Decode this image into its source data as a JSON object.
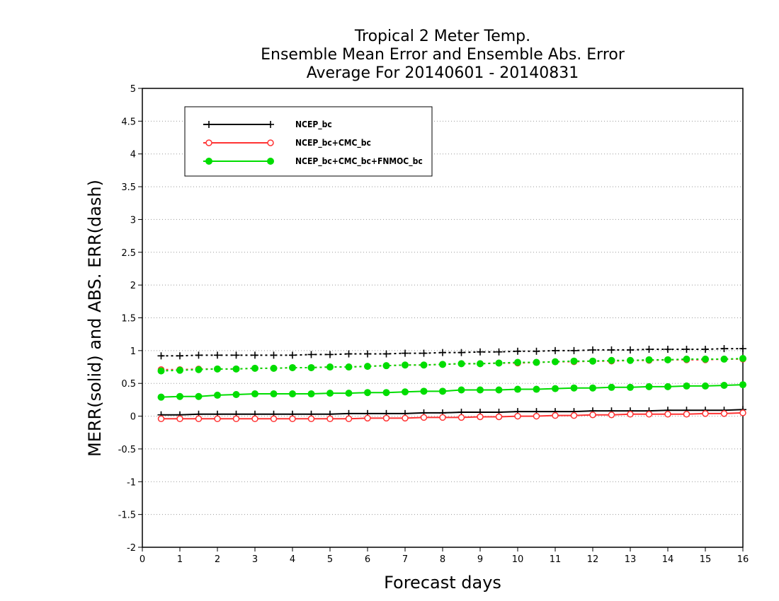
{
  "chart_data": {
    "type": "line",
    "title_lines": [
      "Tropical 2 Meter Temp.",
      "Ensemble Mean Error and Ensemble Abs. Error",
      "Average For 20140601 - 20140831"
    ],
    "xlabel": "Forecast days",
    "ylabel": "MERR(solid) and ABS. ERR(dash)",
    "xlim": [
      0,
      16
    ],
    "ylim": [
      -2,
      5
    ],
    "xticks": [
      0,
      1,
      2,
      3,
      4,
      5,
      6,
      7,
      8,
      9,
      10,
      11,
      12,
      13,
      14,
      15,
      16
    ],
    "yticks": [
      -2,
      -1.5,
      -1,
      -0.5,
      0,
      0.5,
      1,
      1.5,
      2,
      2.5,
      3,
      3.5,
      4,
      4.5,
      5
    ],
    "ytick_labels": [
      "-2",
      "-1.5",
      "-1",
      "-0.5",
      "0",
      "0.5",
      "1",
      "1.5",
      "2",
      "2.5",
      "3",
      "3.5",
      "4",
      "4.5",
      "5"
    ],
    "grid": "horizontal dotted",
    "legend_position": "top-left",
    "x": [
      0.5,
      1,
      1.5,
      2,
      2.5,
      3,
      3.5,
      4,
      4.5,
      5,
      5.5,
      6,
      6.5,
      7,
      7.5,
      8,
      8.5,
      9,
      9.5,
      10,
      10.5,
      11,
      11.5,
      12,
      12.5,
      13,
      13.5,
      14,
      14.5,
      15,
      15.5,
      16
    ],
    "series": [
      {
        "name": "NCEP_bc",
        "color": "#000000",
        "marker": "plus",
        "merr": [
          0.02,
          0.02,
          0.03,
          0.03,
          0.03,
          0.03,
          0.03,
          0.03,
          0.03,
          0.03,
          0.04,
          0.04,
          0.04,
          0.04,
          0.05,
          0.05,
          0.06,
          0.06,
          0.06,
          0.07,
          0.07,
          0.07,
          0.07,
          0.08,
          0.08,
          0.08,
          0.08,
          0.09,
          0.09,
          0.09,
          0.09,
          0.1
        ],
        "abs_err": [
          0.92,
          0.92,
          0.93,
          0.93,
          0.93,
          0.93,
          0.93,
          0.93,
          0.94,
          0.94,
          0.95,
          0.95,
          0.95,
          0.96,
          0.96,
          0.97,
          0.97,
          0.98,
          0.98,
          0.99,
          0.99,
          1.0,
          1.0,
          1.01,
          1.01,
          1.01,
          1.02,
          1.02,
          1.02,
          1.02,
          1.03,
          1.03
        ]
      },
      {
        "name": "NCEP_bc+CMC_bc",
        "color": "#ff3333",
        "marker": "open-circle",
        "merr": [
          -0.04,
          -0.04,
          -0.04,
          -0.04,
          -0.04,
          -0.04,
          -0.04,
          -0.04,
          -0.04,
          -0.04,
          -0.04,
          -0.03,
          -0.03,
          -0.03,
          -0.02,
          -0.02,
          -0.02,
          -0.01,
          -0.01,
          0.0,
          0.0,
          0.01,
          0.01,
          0.02,
          0.02,
          0.03,
          0.03,
          0.03,
          0.03,
          0.04,
          0.04,
          0.05
        ],
        "abs_err": [
          0.71,
          0.71,
          0.72,
          0.72,
          0.72,
          0.73,
          0.73,
          0.74,
          0.74,
          0.75,
          0.75,
          0.76,
          0.77,
          0.78,
          0.78,
          0.79,
          0.8,
          0.8,
          0.81,
          0.81,
          0.82,
          0.83,
          0.83,
          0.84,
          0.84,
          0.85,
          0.85,
          0.86,
          0.86,
          0.86,
          0.87,
          0.87
        ]
      },
      {
        "name": "NCEP_bc+CMC_bc+FNMOC_bc",
        "color": "#00dd00",
        "marker": "filled-circle",
        "merr": [
          0.29,
          0.3,
          0.3,
          0.32,
          0.33,
          0.34,
          0.34,
          0.34,
          0.34,
          0.35,
          0.35,
          0.36,
          0.36,
          0.37,
          0.38,
          0.38,
          0.4,
          0.4,
          0.4,
          0.41,
          0.41,
          0.42,
          0.43,
          0.43,
          0.44,
          0.44,
          0.45,
          0.45,
          0.46,
          0.46,
          0.47,
          0.48
        ],
        "abs_err": [
          0.69,
          0.7,
          0.71,
          0.72,
          0.72,
          0.73,
          0.73,
          0.74,
          0.74,
          0.75,
          0.75,
          0.76,
          0.77,
          0.78,
          0.78,
          0.79,
          0.8,
          0.8,
          0.81,
          0.82,
          0.82,
          0.83,
          0.84,
          0.84,
          0.85,
          0.85,
          0.86,
          0.86,
          0.87,
          0.87,
          0.87,
          0.88
        ]
      }
    ]
  }
}
